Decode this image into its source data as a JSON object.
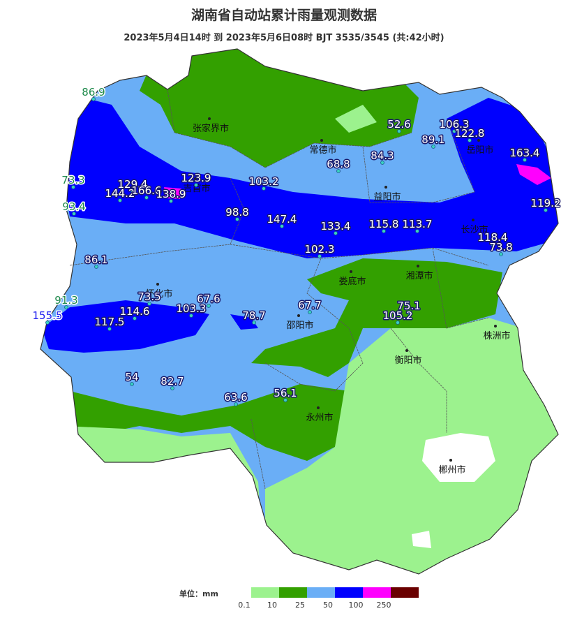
{
  "title": "湖南省自动站累计雨量观测数据",
  "subtitle": "2023年5月4日14时 到 2023年5月6日08时 BJT 3535/3545 (共:42小时)",
  "cities": [
    "张家界市",
    "常德市",
    "岳阳市",
    "吉首市",
    "益阳市",
    "长沙市",
    "娄底市",
    "湘潭市",
    "怀化市",
    "邵阳市",
    "株洲市",
    "衡阳市",
    "永州市",
    "郴州市"
  ],
  "stations": [
    86.9,
    73.3,
    93.4,
    129.4,
    144.2,
    166.6,
    138.9,
    123.9,
    103.2,
    98.8,
    147.4,
    133.4,
    115.8,
    113.7,
    102.3,
    52.6,
    84.3,
    68.8,
    89.1,
    106.3,
    122.8,
    163.4,
    119.2,
    118.4,
    73.8,
    86.1,
    91.3,
    155.5,
    73.5,
    114.6,
    117.5,
    103.3,
    67.6,
    78.7,
    67.7,
    75.1,
    105.2,
    54,
    82.7,
    63.6,
    56.1
  ],
  "legend": {
    "unit_label": "单位：mm",
    "colors": [
      "#9cf28e",
      "#33a000",
      "#6aaef6",
      "#0000fe",
      "#fe00fe",
      "#6a0000"
    ],
    "ticks": [
      0.1,
      10,
      25,
      50,
      100,
      250
    ]
  }
}
